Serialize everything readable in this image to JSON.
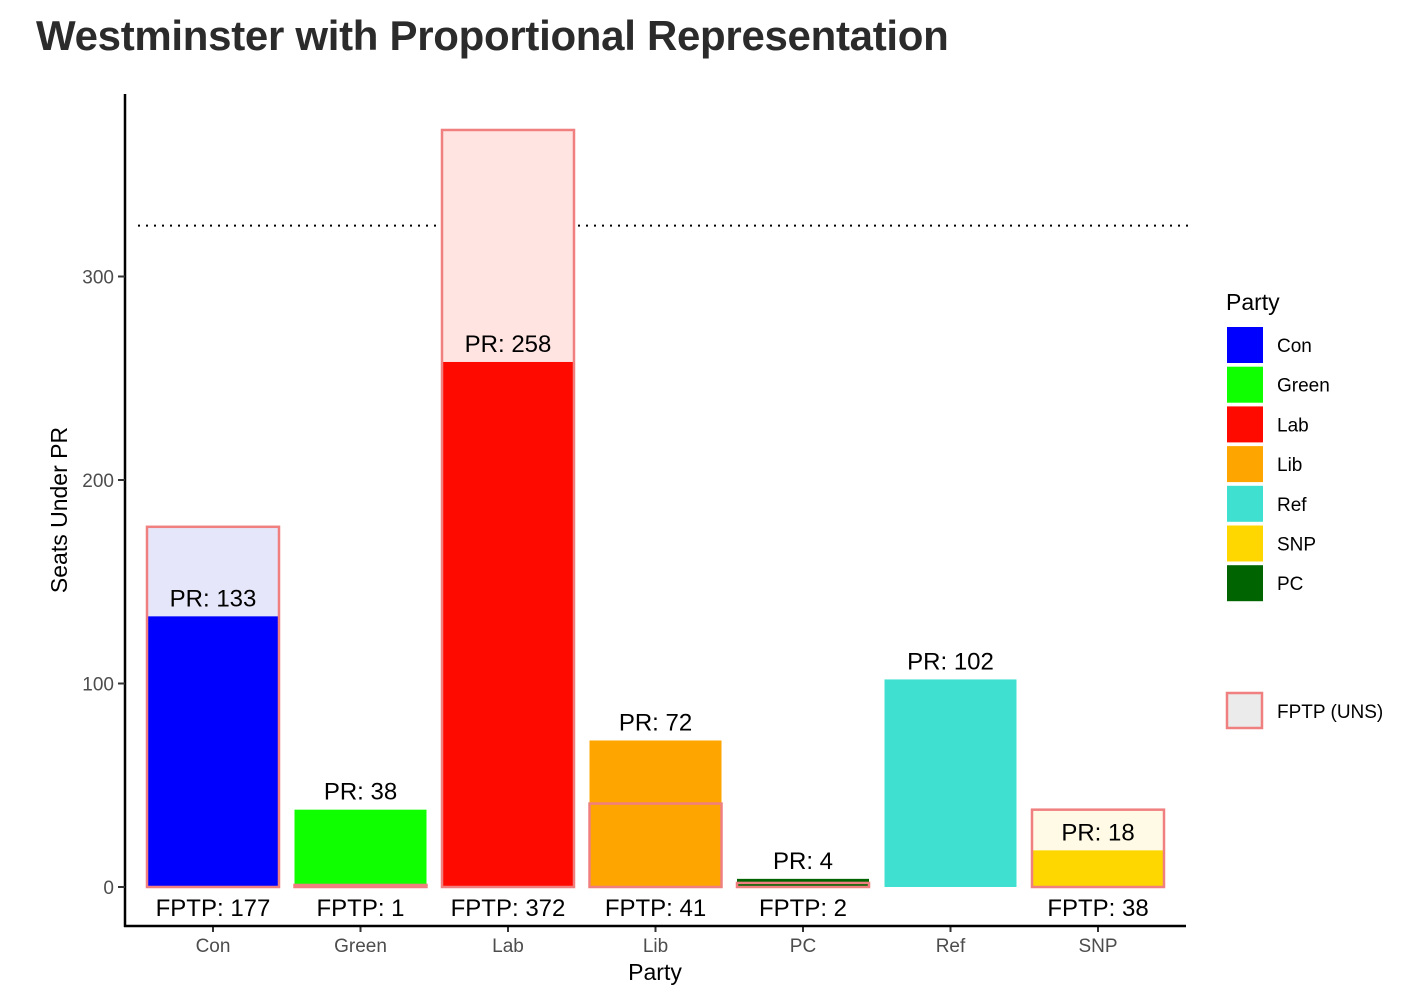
{
  "chart_data": {
    "type": "bar",
    "title": "Westminster with Proportional Representation",
    "xlabel": "Party",
    "ylabel": "Seats Under PR",
    "ylim": [
      0,
      375
    ],
    "yticks": [
      0,
      100,
      200,
      300
    ],
    "reference_line": 325,
    "categories": [
      "Con",
      "Green",
      "Lab",
      "Lib",
      "PC",
      "Ref",
      "SNP"
    ],
    "series": [
      {
        "name": "PR",
        "values": [
          133,
          38,
          258,
          72,
          4,
          102,
          18
        ]
      },
      {
        "name": "FPTP (UNS)",
        "values": [
          177,
          1,
          372,
          41,
          2,
          null,
          38
        ]
      }
    ],
    "pr_labels": [
      "PR: 133",
      "PR: 38",
      "PR: 258",
      "PR: 72",
      "PR: 4",
      "PR: 102",
      "PR: 18"
    ],
    "fptp_labels": [
      "FPTP: 177",
      "FPTP: 1",
      "FPTP: 372",
      "FPTP: 41",
      "FPTP: 2",
      "",
      "FPTP: 38"
    ],
    "legend": {
      "title": "Party",
      "items": [
        {
          "label": "Con",
          "color": "#0000ff"
        },
        {
          "label": "Green",
          "color": "#0fff00"
        },
        {
          "label": "Lab",
          "color": "#ff0a00"
        },
        {
          "label": "Lib",
          "color": "#ffa500"
        },
        {
          "label": "Ref",
          "color": "#40e0d0"
        },
        {
          "label": "SNP",
          "color": "#ffd700"
        },
        {
          "label": "PC",
          "color": "#006400"
        }
      ],
      "fptp_item": {
        "label": "FPTP (UNS)",
        "fill": "#ebebeb",
        "stroke": "#f08080"
      }
    },
    "colors": {
      "Con": "#0000ff",
      "Green": "#0fff00",
      "Lab": "#ff0a00",
      "Lib": "#ffa500",
      "PC": "#006400",
      "Ref": "#40e0d0",
      "SNP": "#ffd700"
    },
    "fptp_fill": {
      "Con": "#e6e6fa",
      "Green": "#e6ffe6",
      "Lab": "#ffe4e1",
      "Lib": "#fff0d9",
      "PC": "#e6f0e6",
      "Ref": "#e6faf8",
      "SNP": "#fffae6"
    },
    "fptp_stroke": "#f08080",
    "legend_position": "right",
    "grid": false
  }
}
